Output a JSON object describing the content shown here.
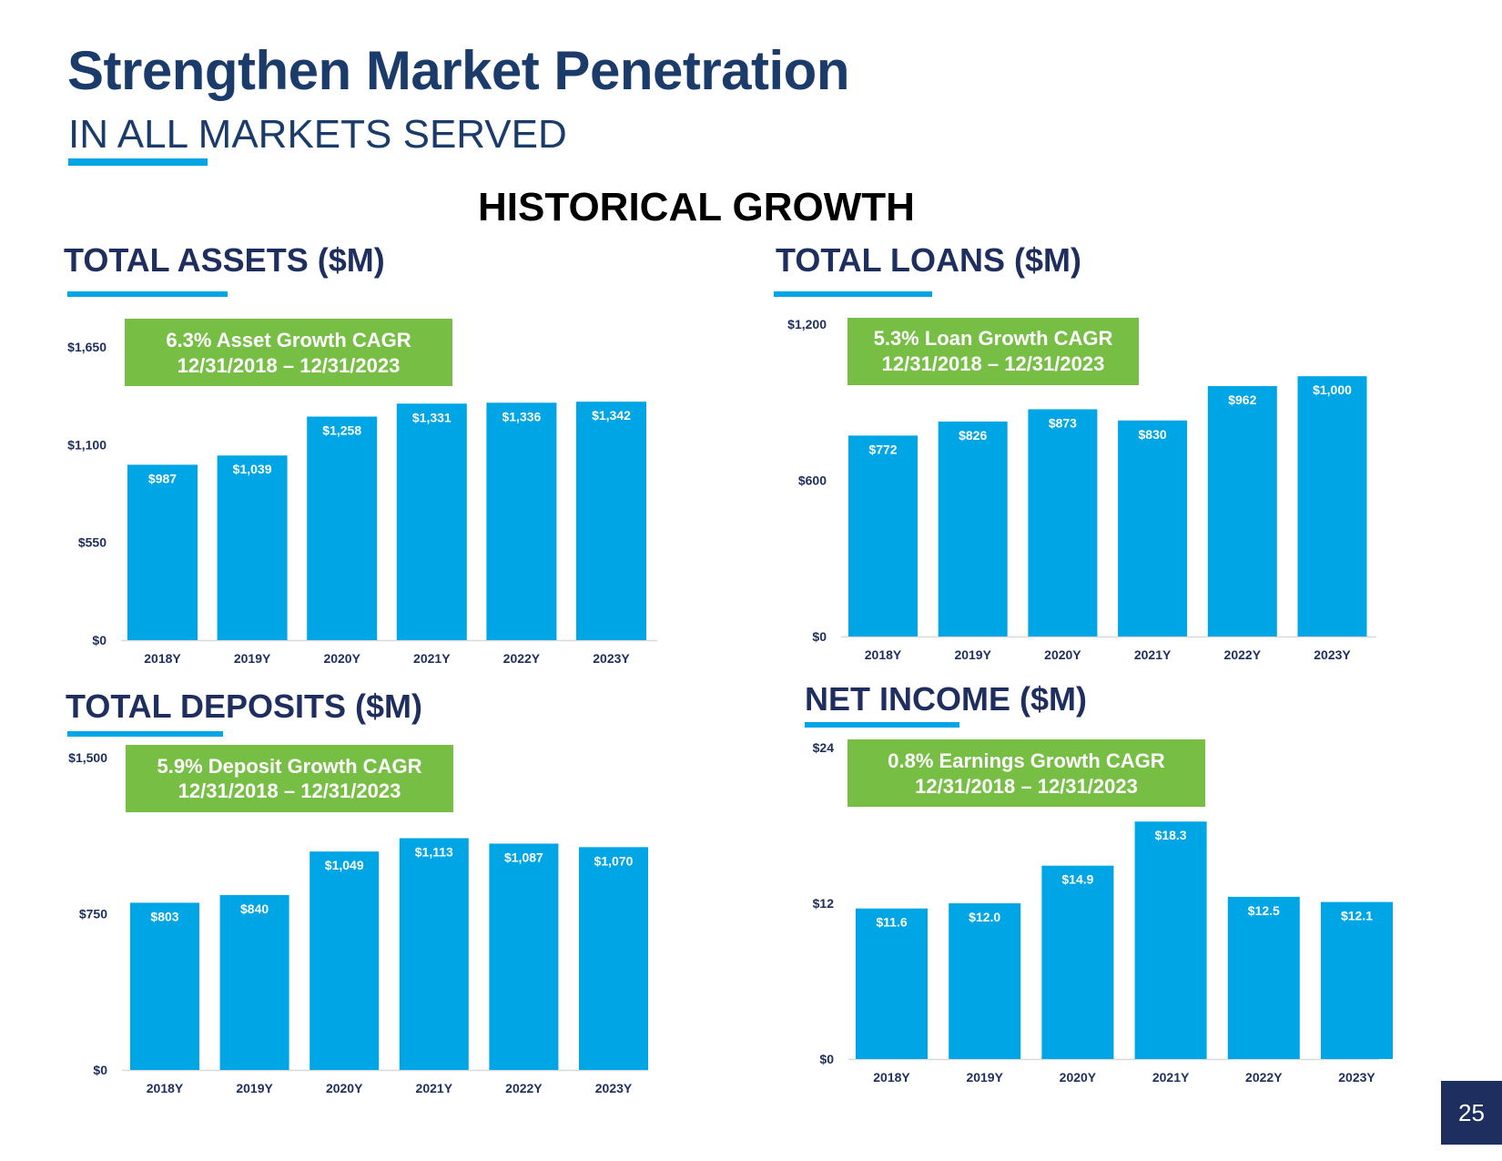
{
  "header": {
    "title": "Strengthen Market Penetration",
    "subtitle": "IN ALL MARKETS SERVED",
    "section": "HISTORICAL GROWTH"
  },
  "page_number": "25",
  "colors": {
    "bar": "#00a5e6",
    "callout": "#77bf44",
    "title": "#1b3c6a",
    "heading": "#1e2e5e"
  },
  "chart_data": [
    {
      "type": "bar",
      "title": "TOTAL ASSETS ($M)",
      "categories": [
        "2018Y",
        "2019Y",
        "2020Y",
        "2021Y",
        "2022Y",
        "2023Y"
      ],
      "values": [
        987,
        1039,
        1258,
        1331,
        1336,
        1342
      ],
      "value_labels": [
        "$987",
        "$1,039",
        "$1,258",
        "$1,331",
        "$1,336",
        "$1,342"
      ],
      "yticks": [
        0,
        550,
        1100,
        1650
      ],
      "ytick_labels": [
        "$0",
        "$550",
        "$1,100",
        "$1,650"
      ],
      "ylim": [
        0,
        1650
      ],
      "callout": [
        "6.3% Asset Growth CAGR",
        "12/31/2018 – 12/31/2023"
      ]
    },
    {
      "type": "bar",
      "title": "TOTAL LOANS ($M)",
      "categories": [
        "2018Y",
        "2019Y",
        "2020Y",
        "2021Y",
        "2022Y",
        "2023Y"
      ],
      "values": [
        772,
        826,
        873,
        830,
        962,
        1000
      ],
      "value_labels": [
        "$772",
        "$826",
        "$873",
        "$830",
        "$962",
        "$1,000"
      ],
      "yticks": [
        0,
        600,
        1200
      ],
      "ytick_labels": [
        "$0",
        "$600",
        "$1,200"
      ],
      "ylim": [
        0,
        1200
      ],
      "callout": [
        "5.3% Loan Growth CAGR",
        "12/31/2018 – 12/31/2023"
      ]
    },
    {
      "type": "bar",
      "title": "TOTAL DEPOSITS ($M)",
      "categories": [
        "2018Y",
        "2019Y",
        "2020Y",
        "2021Y",
        "2022Y",
        "2023Y"
      ],
      "values": [
        803,
        840,
        1049,
        1113,
        1087,
        1070
      ],
      "value_labels": [
        "$803",
        "$840",
        "$1,049",
        "$1,113",
        "$1,087",
        "$1,070"
      ],
      "yticks": [
        0,
        750,
        1500
      ],
      "ytick_labels": [
        "$0",
        "$750",
        "$1,500"
      ],
      "ylim": [
        0,
        1500
      ],
      "callout": [
        "5.9% Deposit Growth CAGR",
        "12/31/2018 – 12/31/2023"
      ]
    },
    {
      "type": "bar",
      "title": "NET INCOME ($M)",
      "categories": [
        "2018Y",
        "2019Y",
        "2020Y",
        "2021Y",
        "2022Y",
        "2023Y"
      ],
      "values": [
        11.6,
        12.0,
        14.9,
        18.3,
        12.5,
        12.1
      ],
      "value_labels": [
        "$11.6",
        "$12.0",
        "$14.9",
        "$18.3",
        "$12.5",
        "$12.1"
      ],
      "yticks": [
        0,
        12,
        24
      ],
      "ytick_labels": [
        "$0",
        "$12",
        "$24"
      ],
      "ylim": [
        0,
        24
      ],
      "callout": [
        "0.8% Earnings Growth CAGR",
        "12/31/2018 – 12/31/2023"
      ]
    }
  ]
}
